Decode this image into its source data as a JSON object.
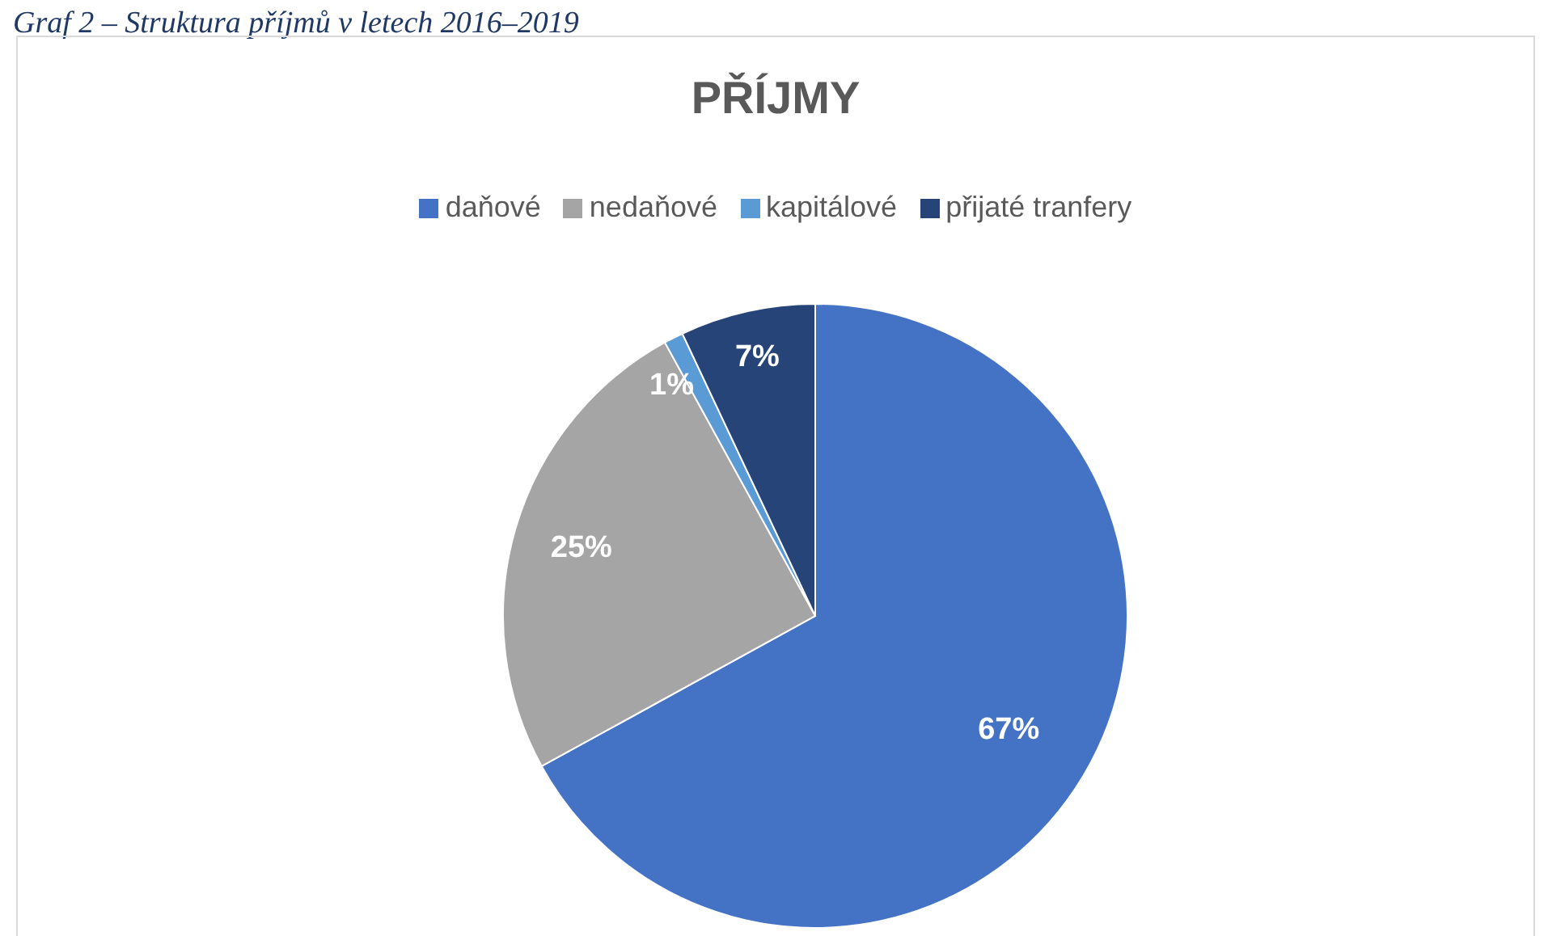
{
  "chart_data": {
    "type": "pie",
    "title": "PŘÍJMY",
    "annotations": [
      "Graf 2 – Struktura příjmů v letech 2016–2019"
    ],
    "categories": [
      "daňové",
      "nedaňové",
      "kapitálové",
      "přijaté tranfery"
    ],
    "values": [
      67,
      25,
      1,
      7
    ],
    "colors": [
      "#4472c4",
      "#a5a5a5",
      "#5b9bd5",
      "#264478"
    ],
    "value_labels": [
      "67%",
      "25%",
      "1%",
      "7%"
    ],
    "legend": "top"
  }
}
